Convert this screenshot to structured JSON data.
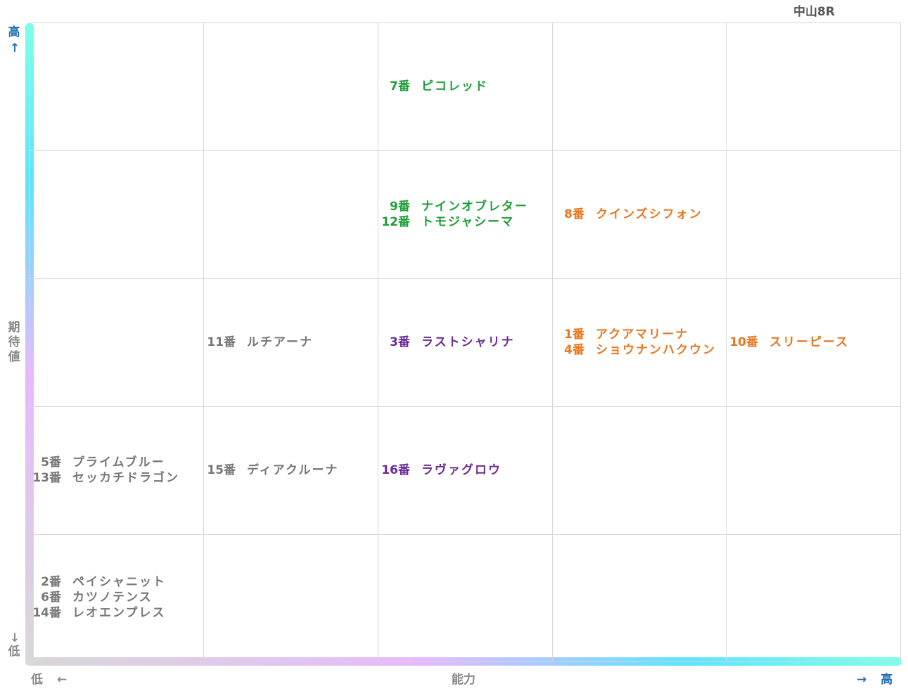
{
  "race_title": "中山8R",
  "axes": {
    "y_high": "高",
    "y_high_arrow": "←",
    "y_title": [
      "期",
      "待",
      "値"
    ],
    "y_low_arrow": "→",
    "y_low": "低",
    "x_low": "低",
    "x_low_arrow": "←",
    "x_title": "能力",
    "x_high_arrow": "→",
    "x_high": "高"
  },
  "colors": {
    "green": "#1e9e3a",
    "orange": "#e87722",
    "purple": "#6a2c91",
    "gray": "#777777",
    "axis_blue": "#1f6fb5",
    "axis_gray": "#888888"
  },
  "chart_data": {
    "type": "table",
    "columns": 5,
    "rows": 5,
    "x_axis": "能力",
    "y_axis": "期待値",
    "cells": [
      {
        "col": 3,
        "row": 5,
        "color": "green",
        "entries": [
          {
            "num": "7番",
            "name": "ピコレッド"
          }
        ]
      },
      {
        "col": 3,
        "row": 4,
        "color": "green",
        "entries": [
          {
            "num": "9番",
            "name": "ナインオブレター"
          },
          {
            "num": "12番",
            "name": "トモジャシーマ"
          }
        ]
      },
      {
        "col": 4,
        "row": 4,
        "color": "orange",
        "entries": [
          {
            "num": "8番",
            "name": "クインズシフォン"
          }
        ]
      },
      {
        "col": 2,
        "row": 3,
        "color": "gray",
        "entries": [
          {
            "num": "11番",
            "name": "ルチアーナ"
          }
        ]
      },
      {
        "col": 3,
        "row": 3,
        "color": "purple",
        "entries": [
          {
            "num": "3番",
            "name": "ラストシャリナ"
          }
        ]
      },
      {
        "col": 4,
        "row": 3,
        "color": "orange",
        "entries": [
          {
            "num": "1番",
            "name": "アクアマリーナ"
          },
          {
            "num": "4番",
            "name": "ショウナンハクウン"
          }
        ]
      },
      {
        "col": 5,
        "row": 3,
        "color": "orange",
        "entries": [
          {
            "num": "10番",
            "name": "スリーピース"
          }
        ]
      },
      {
        "col": 1,
        "row": 2,
        "color": "gray",
        "entries": [
          {
            "num": "5番",
            "name": "プライムブルー"
          },
          {
            "num": "13番",
            "name": "セッカチドラゴン"
          }
        ]
      },
      {
        "col": 2,
        "row": 2,
        "color": "gray",
        "entries": [
          {
            "num": "15番",
            "name": "ディアクルーナ"
          }
        ]
      },
      {
        "col": 3,
        "row": 2,
        "color": "purple",
        "entries": [
          {
            "num": "16番",
            "name": "ラヴァグロウ"
          }
        ]
      },
      {
        "col": 1,
        "row": 1,
        "color": "gray",
        "entries": [
          {
            "num": "2番",
            "name": "ペイシャニット"
          },
          {
            "num": "6番",
            "name": "カツノテンス"
          },
          {
            "num": "14番",
            "name": "レオエンプレス"
          }
        ]
      }
    ]
  }
}
